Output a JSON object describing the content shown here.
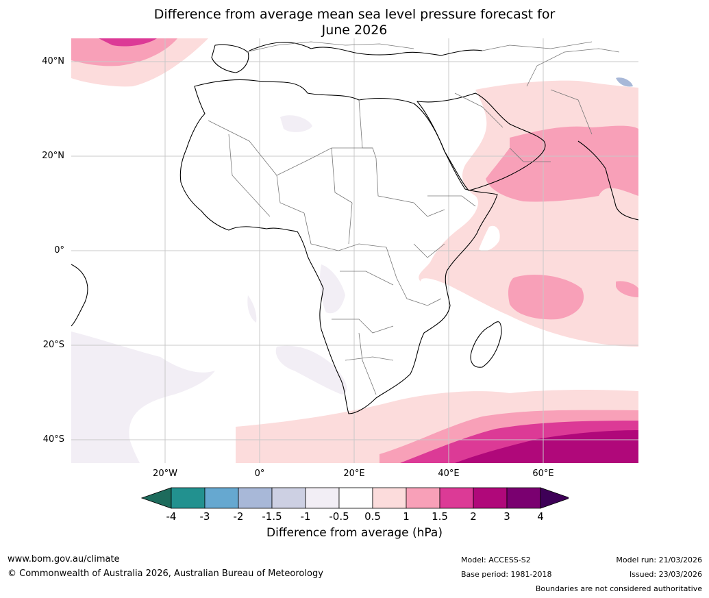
{
  "title_line1": "Difference from average mean sea level pressure forecast for",
  "title_line2": "June 2026",
  "lat_labels": [
    "40°N",
    "20°N",
    "0°",
    "20°S",
    "40°S"
  ],
  "lon_labels": [
    "20°W",
    "0°",
    "20°E",
    "40°E",
    "60°E"
  ],
  "colorbar": {
    "ticks": [
      "-4",
      "-3",
      "-2",
      "-1.5",
      "-1",
      "-0.5",
      "0.5",
      "1",
      "1.5",
      "2",
      "3",
      "4"
    ],
    "colors": [
      "#1d6b5c",
      "#22918f",
      "#66a8d0",
      "#a8b8d8",
      "#cdd0e3",
      "#f2eef5",
      "#ffffff",
      "#fcdcdc",
      "#f8a0b8",
      "#dc3a96",
      "#b0087a",
      "#7a0070",
      "#3e0057"
    ],
    "label": "Difference from average (hPa)"
  },
  "footer": {
    "website": "www.bom.gov.au/climate",
    "copyright": "© Commonwealth of Australia 2026, Australian Bureau of Meteorology",
    "model": "Model: ACCESS-S2",
    "base_period": "Base period: 1981-2018",
    "model_run": "Model run: 21/03/2026",
    "issued": "Issued: 23/03/2026",
    "disclaimer": "Boundaries are not considered authoritative"
  }
}
